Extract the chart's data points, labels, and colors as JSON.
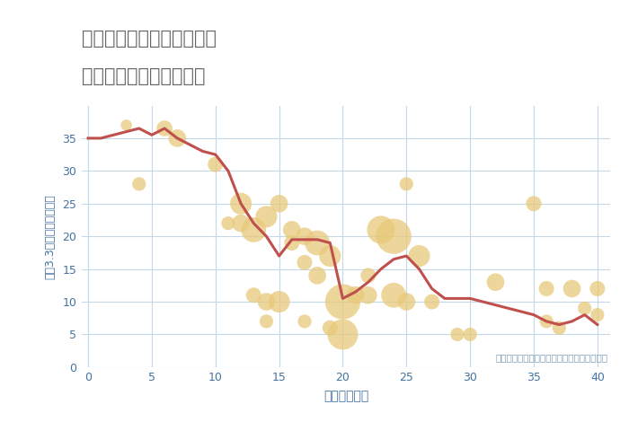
{
  "title_line1": "岐阜県郡上市高鷲町大鷲の",
  "title_line2": "築年数別中古戸建て価格",
  "xlabel": "築年数（年）",
  "ylabel": "坪（3.3㎡）単価（万円）",
  "note": "円の大きさは、取引のあった物件面積を示す",
  "line_x": [
    0,
    1,
    2,
    3,
    4,
    5,
    6,
    7,
    8,
    9,
    10,
    11,
    12,
    13,
    14,
    15,
    16,
    17,
    18,
    19,
    20,
    21,
    22,
    23,
    24,
    25,
    26,
    27,
    28,
    29,
    30,
    31,
    32,
    33,
    34,
    35,
    36,
    37,
    38,
    39,
    40
  ],
  "line_y": [
    35,
    35,
    35.5,
    36,
    36.5,
    35.5,
    36.5,
    35,
    34,
    33,
    32.5,
    30,
    25,
    22,
    20,
    17,
    19.5,
    19.5,
    19.5,
    19,
    10.5,
    11.5,
    13,
    15,
    16.5,
    17,
    15,
    12,
    10.5,
    10.5,
    10.5,
    10,
    9.5,
    9,
    8.5,
    8,
    7,
    6.5,
    7,
    8,
    6.5
  ],
  "scatter_x": [
    3,
    4,
    6,
    7,
    10,
    11,
    12,
    12,
    13,
    13,
    14,
    14,
    14,
    15,
    15,
    16,
    16,
    17,
    17,
    17,
    18,
    18,
    19,
    19,
    20,
    20,
    21,
    22,
    22,
    23,
    24,
    24,
    25,
    25,
    26,
    27,
    29,
    30,
    32,
    35,
    36,
    36,
    37,
    38,
    39,
    40,
    40
  ],
  "scatter_y": [
    37,
    28,
    36.5,
    35,
    31,
    22,
    25,
    22,
    21,
    11,
    23,
    10,
    7,
    25,
    10,
    21,
    19,
    20,
    16,
    7,
    19,
    14,
    17,
    6,
    10,
    5,
    11,
    14,
    11,
    21,
    20,
    11,
    28,
    10,
    17,
    10,
    5,
    5,
    13,
    25,
    12,
    7,
    6,
    12,
    9,
    12,
    8
  ],
  "scatter_size": [
    80,
    120,
    160,
    200,
    150,
    120,
    300,
    200,
    400,
    150,
    300,
    200,
    120,
    200,
    300,
    200,
    150,
    200,
    150,
    120,
    400,
    200,
    300,
    150,
    800,
    600,
    200,
    150,
    200,
    500,
    800,
    400,
    120,
    200,
    300,
    150,
    120,
    120,
    200,
    150,
    150,
    120,
    120,
    200,
    120,
    150,
    120
  ],
  "scatter_color": "#E8C97A",
  "scatter_alpha": 0.75,
  "line_color": "#C0504D",
  "line_width": 2.2,
  "bg_color": "#FFFFFF",
  "grid_color": "#C5D8E8",
  "title_color": "#666666",
  "axis_label_color": "#4472A0",
  "tick_color": "#555555",
  "note_color": "#7A9BB5",
  "xlim": [
    -0.5,
    41
  ],
  "ylim": [
    0,
    40
  ],
  "xticks": [
    0,
    5,
    10,
    15,
    20,
    25,
    30,
    35,
    40
  ],
  "yticks": [
    0,
    5,
    10,
    15,
    20,
    25,
    30,
    35
  ]
}
